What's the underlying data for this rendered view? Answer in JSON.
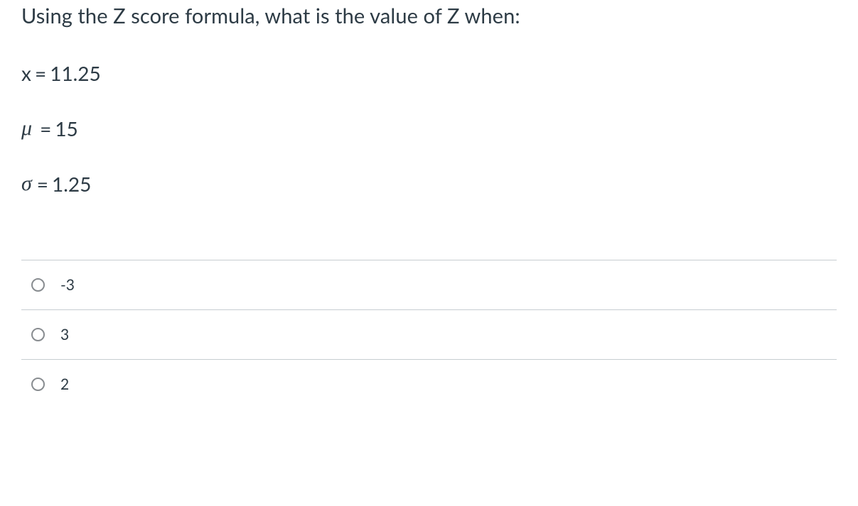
{
  "question": {
    "prompt": "Using the Z score formula, what is the value of Z when:",
    "given": [
      {
        "symbol": "x",
        "symbol_type": "plain",
        "eq": " = ",
        "value": "11.25"
      },
      {
        "symbol": "μ",
        "symbol_type": "mu",
        "eq": " = ",
        "value": "15"
      },
      {
        "symbol": "σ",
        "symbol_type": "sigma",
        "eq": " = ",
        "value": "1.25"
      }
    ],
    "options": [
      {
        "label": "-3"
      },
      {
        "label": "3"
      },
      {
        "label": "2"
      }
    ]
  },
  "style": {
    "text_color": "#2d3b45",
    "divider_color": "#c7cdd1",
    "radio_border": "#888c90",
    "background_color": "#ffffff",
    "prompt_fontsize": 29,
    "given_fontsize": 28,
    "option_fontsize": 21
  }
}
